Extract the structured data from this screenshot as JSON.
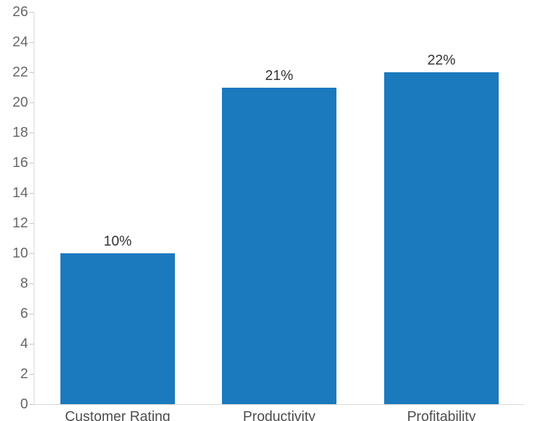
{
  "chart_data": {
    "type": "bar",
    "categories": [
      "Customer Rating",
      "Productivity",
      "Profitability"
    ],
    "values": [
      10,
      21,
      22
    ],
    "data_labels": [
      "10%",
      "21%",
      "22%"
    ],
    "title": "",
    "xlabel": "",
    "ylabel": "",
    "ylim": [
      0,
      26
    ],
    "ytick_step": 2,
    "ytick_labels": [
      "0",
      "2",
      "4",
      "6",
      "8",
      "10",
      "12",
      "14",
      "16",
      "18",
      "20",
      "22",
      "24",
      "26"
    ],
    "grid": false,
    "legend": false,
    "colors": {
      "bar": "#1B79BE",
      "axis_line": "#D9D9D9",
      "tick_mark": "#C4C4C4",
      "tick_label": "#666666",
      "data_label": "#333333",
      "category_label": "#4D4D4D",
      "background": "#FFFFFF"
    }
  }
}
